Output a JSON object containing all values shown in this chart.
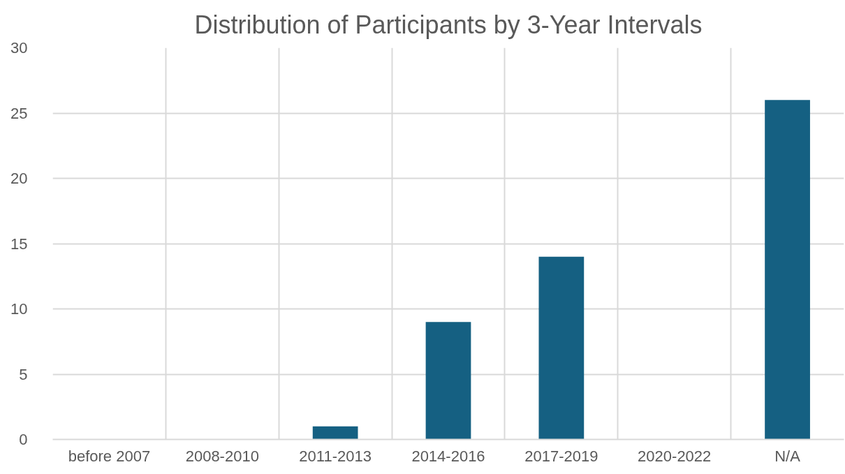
{
  "chart_data": {
    "type": "bar",
    "title": "Distribution of Participants by 3-Year Intervals",
    "categories": [
      "before 2007",
      "2008-2010",
      "2011-2013",
      "2014-2016",
      "2017-2019",
      "2020-2022",
      "N/A"
    ],
    "values": [
      0,
      0,
      1,
      9,
      14,
      0,
      26
    ],
    "color": "#156082",
    "ylim": [
      0,
      30
    ],
    "yticks": [
      0,
      5,
      10,
      15,
      20,
      25,
      30
    ],
    "grid": true
  }
}
